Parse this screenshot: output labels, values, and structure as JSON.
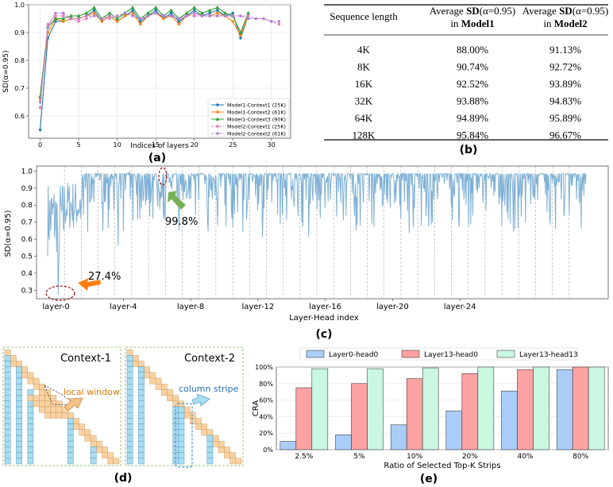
{
  "panel_labels": {
    "a": "(a)",
    "b": "(b)",
    "c": "(c)",
    "d": "(d)",
    "e": "(e)"
  },
  "chart_data": [
    {
      "id": "a",
      "type": "line",
      "xlabel": "Indices of layers",
      "ylabel": "SD(α=0.95)",
      "xlim": [
        -1.5,
        32.5
      ],
      "ylim": [
        0.52,
        1.0
      ],
      "xticks": [
        0,
        5,
        10,
        15,
        20,
        25,
        30
      ],
      "yticks": [
        0.6,
        0.7,
        0.8,
        0.9,
        1.0
      ],
      "grid": true,
      "legend_position": "lower-right",
      "series": [
        {
          "name": "Model1-Context1 (25K)",
          "color": "#1f77b4",
          "marker": "circle",
          "dashed": false,
          "values": [
            0.55,
            0.88,
            0.94,
            0.94,
            0.95,
            0.95,
            0.96,
            0.98,
            0.94,
            0.96,
            0.94,
            0.96,
            0.98,
            0.94,
            0.96,
            0.98,
            0.95,
            0.97,
            0.94,
            0.96,
            0.98,
            0.96,
            0.97,
            0.98,
            0.96,
            0.97,
            0.88,
            0.96
          ]
        },
        {
          "name": "Model1-Context2 (61K)",
          "color": "#ff7f0e",
          "marker": "circle",
          "dashed": false,
          "values": [
            0.66,
            0.9,
            0.95,
            0.94,
            0.95,
            0.95,
            0.96,
            0.97,
            0.94,
            0.96,
            0.94,
            0.96,
            0.97,
            0.93,
            0.96,
            0.97,
            0.95,
            0.96,
            0.93,
            0.96,
            0.97,
            0.96,
            0.96,
            0.97,
            0.96,
            0.94,
            0.89,
            0.96
          ]
        },
        {
          "name": "Model1-Context3 (90K)",
          "color": "#2ca02c",
          "marker": "triangle",
          "dashed": false,
          "values": [
            0.67,
            0.92,
            0.95,
            0.95,
            0.96,
            0.96,
            0.97,
            0.99,
            0.95,
            0.97,
            0.95,
            0.97,
            0.99,
            0.95,
            0.97,
            0.99,
            0.96,
            0.98,
            0.95,
            0.97,
            0.99,
            0.97,
            0.98,
            0.99,
            0.97,
            0.96,
            0.9,
            0.97
          ]
        },
        {
          "name": "Model2-Context1 (25K)",
          "color": "#e377c2",
          "marker": "circle",
          "dashed": true,
          "values": [
            0.63,
            0.93,
            0.96,
            0.96,
            0.95,
            0.94,
            0.95,
            0.96,
            0.95,
            0.95,
            0.96,
            0.97,
            0.96,
            0.95,
            0.96,
            0.97,
            0.96,
            0.96,
            0.95,
            0.96,
            0.96,
            0.96,
            0.96,
            0.96,
            0.96,
            0.96,
            0.96,
            0.96,
            0.95,
            0.95,
            0.94,
            0.93
          ]
        },
        {
          "name": "Model2-Context2 (61K)",
          "color": "#b07fd1",
          "marker": "circle",
          "dashed": true,
          "values": [
            0.65,
            0.92,
            0.97,
            0.97,
            0.95,
            0.95,
            0.96,
            0.96,
            0.95,
            0.96,
            0.96,
            0.97,
            0.96,
            0.95,
            0.96,
            0.97,
            0.96,
            0.96,
            0.95,
            0.96,
            0.97,
            0.96,
            0.96,
            0.96,
            0.96,
            0.96,
            0.96,
            0.95,
            0.95,
            0.95,
            0.94,
            0.94
          ]
        }
      ]
    },
    {
      "id": "b",
      "type": "table",
      "columns": [
        "Sequence length",
        "Average SD(α=0.95) in Model1",
        "Average SD(α=0.95) in Model2"
      ],
      "header_line1": [
        "Average ",
        "SD",
        "(α=0.95)"
      ],
      "header_line2_prefix": "in ",
      "header_models": [
        "Model1",
        "Model2"
      ],
      "rows": [
        [
          "4K",
          "88.00%",
          "91.13%"
        ],
        [
          "8K",
          "90.74%",
          "92.72%"
        ],
        [
          "16K",
          "92.52%",
          "93.89%"
        ],
        [
          "32K",
          "93.88%",
          "94.83%"
        ],
        [
          "64K",
          "94.89%",
          "95.89%"
        ],
        [
          "128K",
          "95.84%",
          "96.67%"
        ]
      ]
    },
    {
      "id": "c",
      "type": "line",
      "xlabel": "Layer-Head index",
      "ylabel": "SD(α=0.95)",
      "ylim": [
        0.25,
        1.03
      ],
      "yticks": [
        0.3,
        0.4,
        0.5,
        0.6,
        0.7,
        0.8,
        0.9,
        1.0
      ],
      "xtick_labels": [
        "layer-0",
        "layer-4",
        "layer-8",
        "layer-12",
        "layer-16",
        "layer-20",
        "layer-24"
      ],
      "series_color": "#7eb0d5",
      "annotations": [
        {
          "text": "27.4%",
          "value": 0.274,
          "color": "#ff7f0e"
        },
        {
          "text": "99.8%",
          "value": 0.998,
          "color": "#77b25a"
        }
      ]
    },
    {
      "id": "e",
      "type": "bar",
      "ylabel": "CRA",
      "xlabel": "Ratio of Selected Top-K Strips",
      "categories": [
        "2.5%",
        "5%",
        "10%",
        "20%",
        "40%",
        "80%"
      ],
      "ylim": [
        0,
        100
      ],
      "yticks": [
        "0%",
        "20%",
        "40%",
        "60%",
        "80%",
        "100%"
      ],
      "legend_position": "top",
      "series": [
        {
          "name": "Layer0-head0",
          "color": "#a9cdf7",
          "values": [
            10,
            18,
            30,
            47,
            71,
            97
          ]
        },
        {
          "name": "Layer13-head0",
          "color": "#fca2a2",
          "values": [
            75,
            80,
            86,
            92,
            97,
            100
          ]
        },
        {
          "name": "Layer13-head13",
          "color": "#c9f7e1",
          "values": [
            98,
            98,
            99,
            100,
            100,
            100
          ]
        }
      ]
    }
  ],
  "diagram_d": {
    "context1_title": "Context-1",
    "context2_title": "Context-2",
    "local_window_label": "local window",
    "column_stripe_label": "column stripe",
    "orange_cell": "#f9d2a3",
    "blue_cell": "#a8dcef"
  }
}
